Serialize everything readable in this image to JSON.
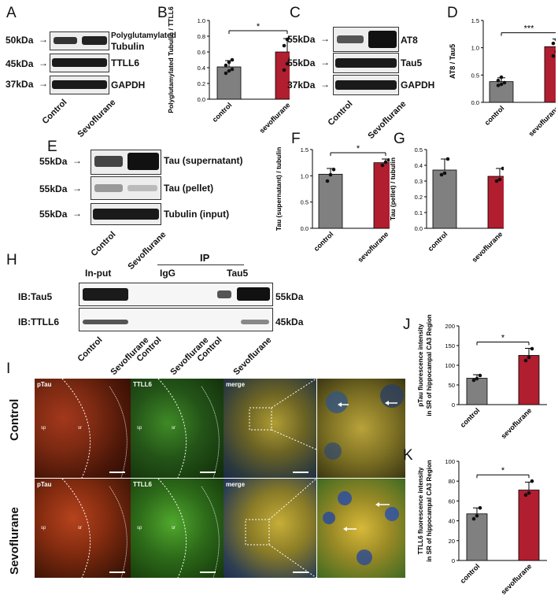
{
  "panels": {
    "A": {
      "letter": "A",
      "mw": [
        "50kDa",
        "45kDa",
        "37kDa"
      ],
      "bands": [
        "Polyglutamylated",
        "Tubulin",
        "TTLL6",
        "GAPDH"
      ],
      "lanes": [
        "Control",
        "Sevoflurane"
      ]
    },
    "B": {
      "letter": "B"
    },
    "C": {
      "letter": "C",
      "mw": [
        "55kDa",
        "55kDa",
        "37kDa"
      ],
      "bands": [
        "AT8",
        "Tau5",
        "GAPDH"
      ],
      "lanes": [
        "Control",
        "Sevoflurane"
      ]
    },
    "D": {
      "letter": "D"
    },
    "E": {
      "letter": "E",
      "mw": [
        "55kDa",
        "55kDa",
        "55kDa"
      ],
      "bands": [
        "Tau (supernatant)",
        "Tau (pellet)",
        "Tubulin (input)"
      ],
      "lanes": [
        "Control",
        "Sevoflurane"
      ]
    },
    "F": {
      "letter": "F"
    },
    "G": {
      "letter": "G"
    },
    "H": {
      "letter": "H",
      "ip": "IP",
      "groups": [
        "In-put",
        "IgG",
        "Tau5"
      ],
      "rows": [
        "IB:Tau5",
        "IB:TTLL6"
      ],
      "mw": [
        "55kDa",
        "45kDa"
      ],
      "lanes": [
        "Control",
        "Sevoflurane",
        "Control",
        "Sevoflurane",
        "Control",
        "Sevoflurane"
      ]
    },
    "I": {
      "letter": "I",
      "rows": [
        "Control",
        "Sevoflurane"
      ],
      "cols": [
        "pTau",
        "TTLL6",
        "merge"
      ],
      "regions": [
        "sp",
        "sr"
      ]
    },
    "J": {
      "letter": "J"
    },
    "K": {
      "letter": "K"
    }
  },
  "chart_data": [
    {
      "id": "B",
      "type": "bar",
      "categories": [
        "control",
        "sevoflurane"
      ],
      "values": [
        0.41,
        0.6
      ],
      "errors": [
        0.08,
        0.17
      ],
      "ylabel": "Polyglutamylated Tubulin / TTLL6",
      "ylim": [
        0,
        1.0
      ],
      "yticks": [
        "0.0",
        "0.2",
        "0.4",
        "0.6",
        "0.8",
        "1.0"
      ],
      "significance": "*",
      "colors": [
        "#808080",
        "#b01e2f"
      ],
      "points": [
        [
          0.33,
          0.36,
          0.38,
          0.43,
          0.47,
          0.5
        ],
        [
          0.37,
          0.45,
          0.52,
          0.68,
          0.76,
          0.79
        ]
      ]
    },
    {
      "id": "D",
      "type": "bar",
      "categories": [
        "control",
        "sevoflurane"
      ],
      "values": [
        0.38,
        1.02
      ],
      "errors": [
        0.07,
        0.14
      ],
      "ylabel": "AT8 / Tau5",
      "ylim": [
        0,
        1.5
      ],
      "yticks": [
        "0.0",
        "0.5",
        "1.0",
        "1.5"
      ],
      "significance": "***",
      "colors": [
        "#808080",
        "#b01e2f"
      ],
      "points": [
        [
          0.31,
          0.33,
          0.36,
          0.4,
          0.46
        ],
        [
          0.85,
          0.93,
          1.0,
          1.08,
          1.15
        ]
      ]
    },
    {
      "id": "F",
      "type": "bar",
      "categories": [
        "control",
        "sevoflurane"
      ],
      "values": [
        1.03,
        1.25
      ],
      "errors": [
        0.11,
        0.07
      ],
      "ylabel": "Tau (supernatant) / tubulin",
      "ylim": [
        0,
        1.5
      ],
      "yticks": [
        "0.0",
        "0.5",
        "1.0",
        "1.5"
      ],
      "significance": "*",
      "colors": [
        "#808080",
        "#b01e2f"
      ],
      "points": [
        [
          0.9,
          1.02,
          1.12
        ],
        [
          1.2,
          1.26,
          1.3
        ]
      ]
    },
    {
      "id": "G",
      "type": "bar",
      "categories": [
        "control",
        "sevoflurane"
      ],
      "values": [
        0.37,
        0.33
      ],
      "errors": [
        0.07,
        0.05
      ],
      "ylabel": "Tau (pellet) / tubulin",
      "ylim": [
        0,
        0.5
      ],
      "yticks": [
        "0.0",
        "0.1",
        "0.2",
        "0.3",
        "0.4",
        "0.5"
      ],
      "significance": "",
      "colors": [
        "#808080",
        "#b01e2f"
      ],
      "points": [
        [
          0.34,
          0.35,
          0.44
        ],
        [
          0.3,
          0.31,
          0.38
        ]
      ]
    },
    {
      "id": "J",
      "type": "bar",
      "categories": [
        "control",
        "sevoflurane"
      ],
      "values": [
        67,
        125
      ],
      "errors": [
        9,
        18
      ],
      "ylabel": "pTau fluorescence intensity in SR of hippocampal CA3 Region",
      "ylim": [
        0,
        200
      ],
      "yticks": [
        "0",
        "50",
        "100",
        "150",
        "200"
      ],
      "significance": "*",
      "colors": [
        "#808080",
        "#b01e2f"
      ],
      "points": [
        [
          62,
          66,
          74
        ],
        [
          112,
          120,
          142
        ]
      ]
    },
    {
      "id": "K",
      "type": "bar",
      "categories": [
        "control",
        "sevoflurane"
      ],
      "values": [
        47,
        71
      ],
      "errors": [
        6,
        8
      ],
      "ylabel": "TTLL6 fluorescence intensity in SR of hippocampal CA3 Region",
      "ylim": [
        0,
        100
      ],
      "yticks": [
        "0",
        "20",
        "40",
        "60",
        "80",
        "100"
      ],
      "significance": "*",
      "colors": [
        "#808080",
        "#b01e2f"
      ],
      "points": [
        [
          42,
          45,
          53
        ],
        [
          66,
          68,
          80
        ]
      ]
    }
  ]
}
